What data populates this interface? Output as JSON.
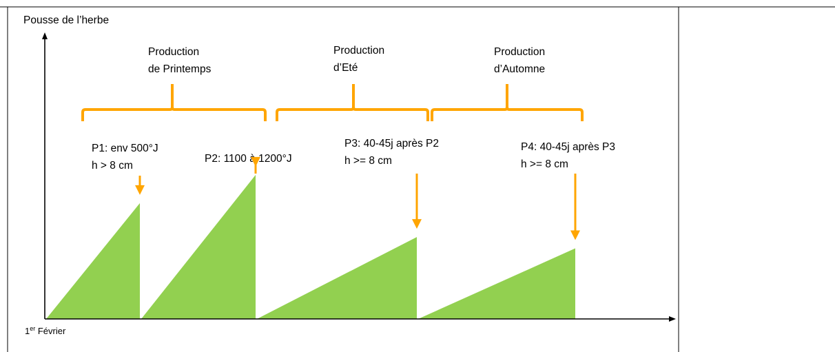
{
  "colors": {
    "growth_fill": "#92D050",
    "accent": "#FFA500",
    "axis": "#000000",
    "frame": "#000000"
  },
  "axes": {
    "y_label": "Pousse de l’herbe",
    "x_origin_label_prefix": "1",
    "x_origin_label_sup": "er",
    "x_origin_label_rest": " Février"
  },
  "periods": [
    {
      "line1": "Production",
      "line2": "de Printemps"
    },
    {
      "line1": "Production",
      "line2": "d’Eté"
    },
    {
      "line1": "Production",
      "line2": "d’Automne"
    }
  ],
  "cuts": [
    {
      "id": "P1",
      "line1": "P1: env 500°J",
      "line2": "h > 8 cm",
      "relative_height": 0.41
    },
    {
      "id": "P2",
      "line1": "P2: 1100 à 1200°J",
      "line2": "",
      "relative_height": 0.51
    },
    {
      "id": "P3",
      "line1": "P3: 40-45j après P2",
      "line2": "h >= 8 cm",
      "relative_height": 0.29
    },
    {
      "id": "P4",
      "line1": "P4: 40-45j après P3",
      "line2": "h >= 8 cm",
      "relative_height": 0.25
    }
  ]
}
